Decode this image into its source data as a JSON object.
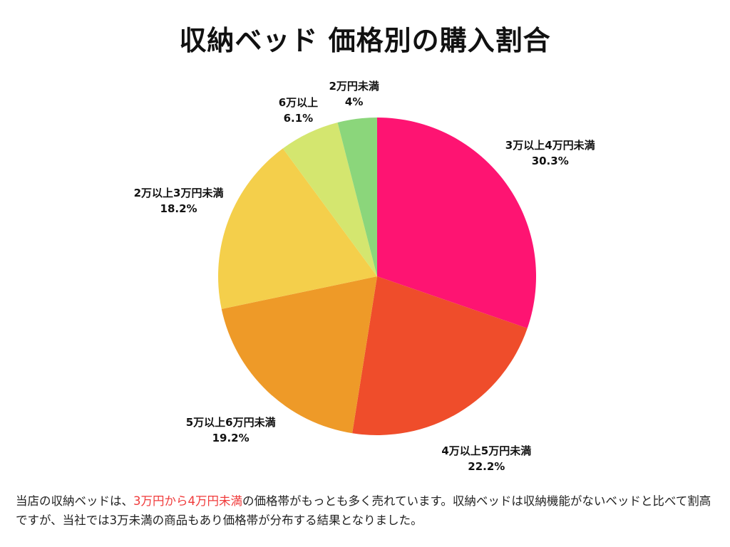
{
  "chart_data": {
    "type": "pie",
    "title": "収納ベッド 価格別の購入割合",
    "start_angle": "top, clockwise",
    "slices": [
      {
        "label": "3万以上4万円未満",
        "value": 30.3,
        "value_label": "30.3%",
        "color": "#FE1472"
      },
      {
        "label": "4万以上5万円未満",
        "value": 22.2,
        "value_label": "22.2%",
        "color": "#EF4D2B"
      },
      {
        "label": "5万以上6万円未満",
        "value": 19.2,
        "value_label": "19.2%",
        "color": "#EE9A28"
      },
      {
        "label": "2万以上3万円未満",
        "value": 18.2,
        "value_label": "18.2%",
        "color": "#F4CF4B"
      },
      {
        "label": "6万以上",
        "value": 6.1,
        "value_label": "6.1%",
        "color": "#D4E66F"
      },
      {
        "label": "2万円未満",
        "value": 4,
        "value_label": "4%",
        "color": "#8BD67B"
      }
    ]
  },
  "caption": {
    "part1": "当店の収納ベッドは、",
    "highlight": "3万円から4万円未満",
    "part2": "の価格帯がもっとも多く売れています。収納ベッドは収納機能がないベッドと比べて割高ですが、当社では3万未満の商品もあり価格帯が分布する結果となりました。",
    "highlight_color": "#F03A3A"
  }
}
